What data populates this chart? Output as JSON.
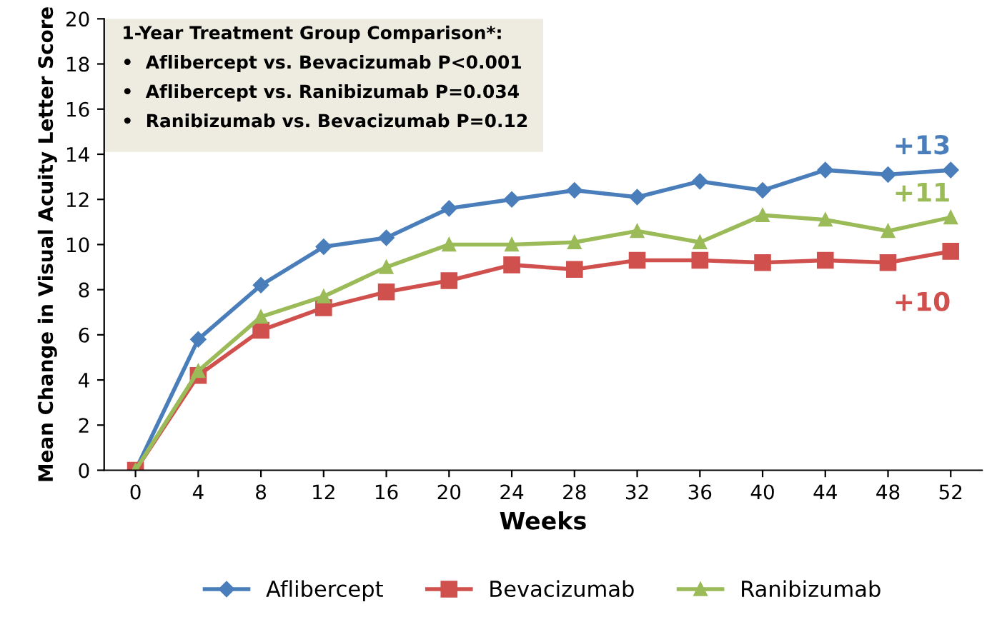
{
  "chart_data": {
    "type": "line",
    "xlabel": "Weeks",
    "ylabel": "Mean Change in Visual Acuity Letter Score",
    "categories": [
      "0",
      "4",
      "8",
      "12",
      "16",
      "20",
      "24",
      "28",
      "32",
      "36",
      "40",
      "44",
      "48",
      "52"
    ],
    "ylim": [
      0,
      20
    ],
    "yticks": [
      0,
      2,
      4,
      6,
      8,
      10,
      12,
      14,
      16,
      18,
      20
    ],
    "grid": false,
    "legend": "bottom",
    "series": [
      {
        "name": "Aflibercept",
        "color": "#4a7ebb",
        "marker": "diamond",
        "values": [
          0,
          5.8,
          8.2,
          9.9,
          10.3,
          11.6,
          12.0,
          12.4,
          12.1,
          12.8,
          12.4,
          13.3,
          13.1,
          13.3
        ]
      },
      {
        "name": "Bevacizumab",
        "color": "#d0504d",
        "marker": "square",
        "values": [
          0,
          4.2,
          6.2,
          7.2,
          7.9,
          8.4,
          9.1,
          8.9,
          9.3,
          9.3,
          9.2,
          9.3,
          9.2,
          9.7
        ]
      },
      {
        "name": "Ranibizumab",
        "color": "#9bbb59",
        "marker": "triangle",
        "values": [
          0,
          4.4,
          6.8,
          7.7,
          9.0,
          10.0,
          10.0,
          10.1,
          10.6,
          10.1,
          11.3,
          11.1,
          10.6,
          11.2
        ]
      }
    ],
    "annotations": [
      "1-Year Treatment Group Comparison*:",
      "•  Aflibercept vs. Bevacizumab P<0.001",
      "•  Aflibercept vs. Ranibizumab P=0.034",
      "•  Ranibizumab vs. Bevacizumab P=0.12",
      {
        "text": "+13",
        "x": "52",
        "y": 13.3
      },
      {
        "text": "+11",
        "x": "52",
        "y": 11.2
      },
      {
        "text": "+10",
        "x": "52",
        "y": 9.7
      }
    ]
  }
}
